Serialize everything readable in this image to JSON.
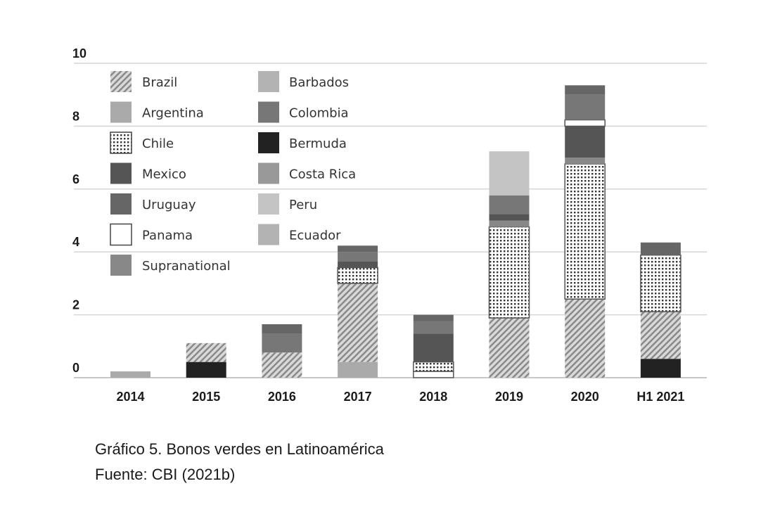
{
  "chart_data": {
    "type": "bar",
    "stacked": true,
    "categories": [
      "2014",
      "2015",
      "2016",
      "2017",
      "2018",
      "2019",
      "2020",
      "H1 2021"
    ],
    "ylim": [
      0,
      10
    ],
    "yticks": [
      "0",
      "2",
      "4",
      "6",
      "8",
      "10"
    ],
    "ytick_values": [
      0,
      2,
      4,
      6,
      8,
      10
    ],
    "grid": true,
    "legend_position": "top-left",
    "series": [
      {
        "name": "Bermuda",
        "color": "#222222",
        "pattern": "solid",
        "values": [
          0,
          0.5,
          0,
          0,
          0,
          0,
          0,
          0.6
        ]
      },
      {
        "name": "Argentina",
        "color": "#aaaaaa",
        "pattern": "solid",
        "values": [
          0.2,
          0,
          0,
          0.5,
          0,
          0,
          0,
          0
        ]
      },
      {
        "name": "Brazil",
        "color": "#cfcfcf",
        "pattern": "hatch",
        "values": [
          0,
          0.6,
          0.8,
          2.5,
          0,
          1.9,
          2.5,
          1.5
        ]
      },
      {
        "name": "Panama",
        "color": "#ffffff",
        "pattern": "solid",
        "values": [
          0,
          0,
          0,
          0,
          0.2,
          0,
          0,
          0
        ]
      },
      {
        "name": "Chile",
        "color": "#ffffff",
        "pattern": "dots",
        "values": [
          0,
          0,
          0,
          0.5,
          0.3,
          2.9,
          4.3,
          1.8
        ]
      },
      {
        "name": "Supranational",
        "color": "#888888",
        "pattern": "solid",
        "values": [
          0,
          0,
          0,
          0,
          0,
          0.2,
          0.2,
          0
        ]
      },
      {
        "name": "Mexico",
        "color": "#555555",
        "pattern": "solid",
        "values": [
          0,
          0,
          0,
          0.2,
          0.9,
          0.2,
          1.0,
          0
        ]
      },
      {
        "name": "Panama",
        "color": "#ffffff",
        "pattern": "solid",
        "values": [
          0,
          0,
          0,
          0,
          0,
          0,
          0.2,
          0
        ]
      },
      {
        "name": "Colombia",
        "color": "#777777",
        "pattern": "solid",
        "values": [
          0,
          0,
          0.6,
          0.3,
          0.4,
          0.6,
          0.8,
          0
        ]
      },
      {
        "name": "Uruguay",
        "color": "#666666",
        "pattern": "solid",
        "values": [
          0,
          0,
          0.3,
          0.2,
          0.2,
          0,
          0.3,
          0.4
        ]
      },
      {
        "name": "Peru",
        "color": "#c4c4c4",
        "pattern": "solid",
        "values": [
          0,
          0,
          0,
          0,
          0,
          1.4,
          0,
          0
        ]
      }
    ]
  },
  "legend": {
    "left": [
      {
        "label": "Brazil",
        "pattern": "hatch",
        "color": "#cfcfcf"
      },
      {
        "label": "Argentina",
        "pattern": "solid",
        "color": "#aaaaaa"
      },
      {
        "label": "Chile",
        "pattern": "dots",
        "color": "#ffffff"
      },
      {
        "label": "Mexico",
        "pattern": "solid",
        "color": "#555555"
      },
      {
        "label": "Uruguay",
        "pattern": "solid",
        "color": "#666666"
      },
      {
        "label": "Panama",
        "pattern": "solid",
        "color": "#ffffff"
      },
      {
        "label": "Supranational",
        "pattern": "solid",
        "color": "#888888"
      }
    ],
    "right": [
      {
        "label": "Barbados",
        "pattern": "solid",
        "color": "#b3b3b3"
      },
      {
        "label": "Colombia",
        "pattern": "solid",
        "color": "#777777"
      },
      {
        "label": "Bermuda",
        "pattern": "solid",
        "color": "#222222"
      },
      {
        "label": "Costa Rica",
        "pattern": "solid",
        "color": "#999999"
      },
      {
        "label": "Peru",
        "pattern": "solid",
        "color": "#c4c4c4"
      },
      {
        "label": "Ecuador",
        "pattern": "solid",
        "color": "#b3b3b3"
      }
    ]
  },
  "caption": {
    "title": "Gráfico 5. Bonos verdes en Latinoamérica",
    "source": "Fuente: CBI (2021b)"
  }
}
